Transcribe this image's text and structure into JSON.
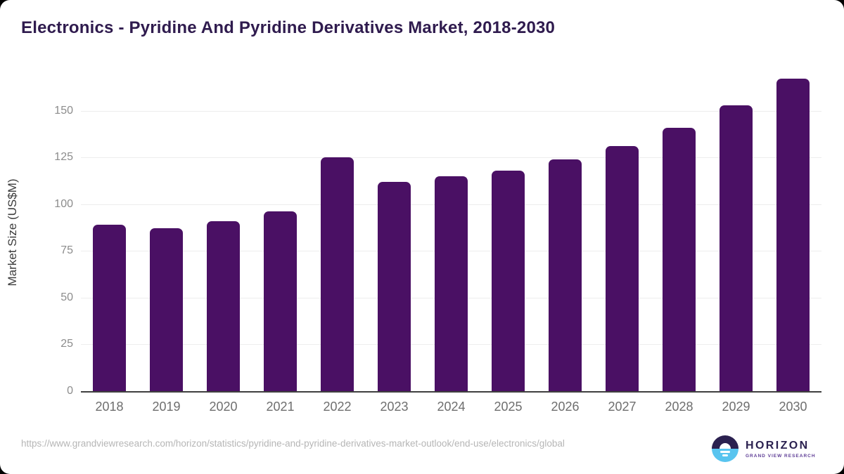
{
  "title": "Electronics - Pyridine And Pyridine Derivatives Market, 2018-2030",
  "source": {
    "url": "https://www.grandviewresearch.com/horizon/statistics/pyridine-and-pyridine-derivatives-market-outlook/end-use/electronics/global"
  },
  "logo": {
    "name": "HORIZON",
    "subtitle": "GRAND VIEW RESEARCH",
    "icon": "horizon-sunrise-icon",
    "colors": {
      "dark_purple": "#2b2150",
      "light_blue": "#58c4ef",
      "subtitle_purple": "#5e3d96"
    }
  },
  "colors": {
    "page_background": "#000000",
    "card_background": "#ffffff",
    "title_text": "#2f1b4e",
    "bar_fill": "#4a1064",
    "gridline": "#ededed",
    "axis_line": "#3f3f3f",
    "y_tick_text": "#8c8c8c",
    "x_tick_text": "#6e6e6e",
    "y_axis_title_text": "#3c3c3c",
    "source_text": "#b6b6b6"
  },
  "chart_data": {
    "type": "bar",
    "title": "Electronics - Pyridine And Pyridine Derivatives Market, 2018-2030",
    "categories": [
      "2018",
      "2019",
      "2020",
      "2021",
      "2022",
      "2023",
      "2024",
      "2025",
      "2026",
      "2027",
      "2028",
      "2029",
      "2030"
    ],
    "values": [
      89,
      87,
      91,
      96,
      125,
      112,
      115,
      118,
      124,
      131,
      141,
      153,
      167
    ],
    "xlabel": "",
    "ylabel": "Market Size (US$M)",
    "ylim": [
      0,
      175
    ],
    "yticks": [
      0,
      25,
      50,
      75,
      100,
      125,
      150
    ],
    "grid": "horizontal",
    "legend_position": "none",
    "bar_color": "#4a1064"
  }
}
